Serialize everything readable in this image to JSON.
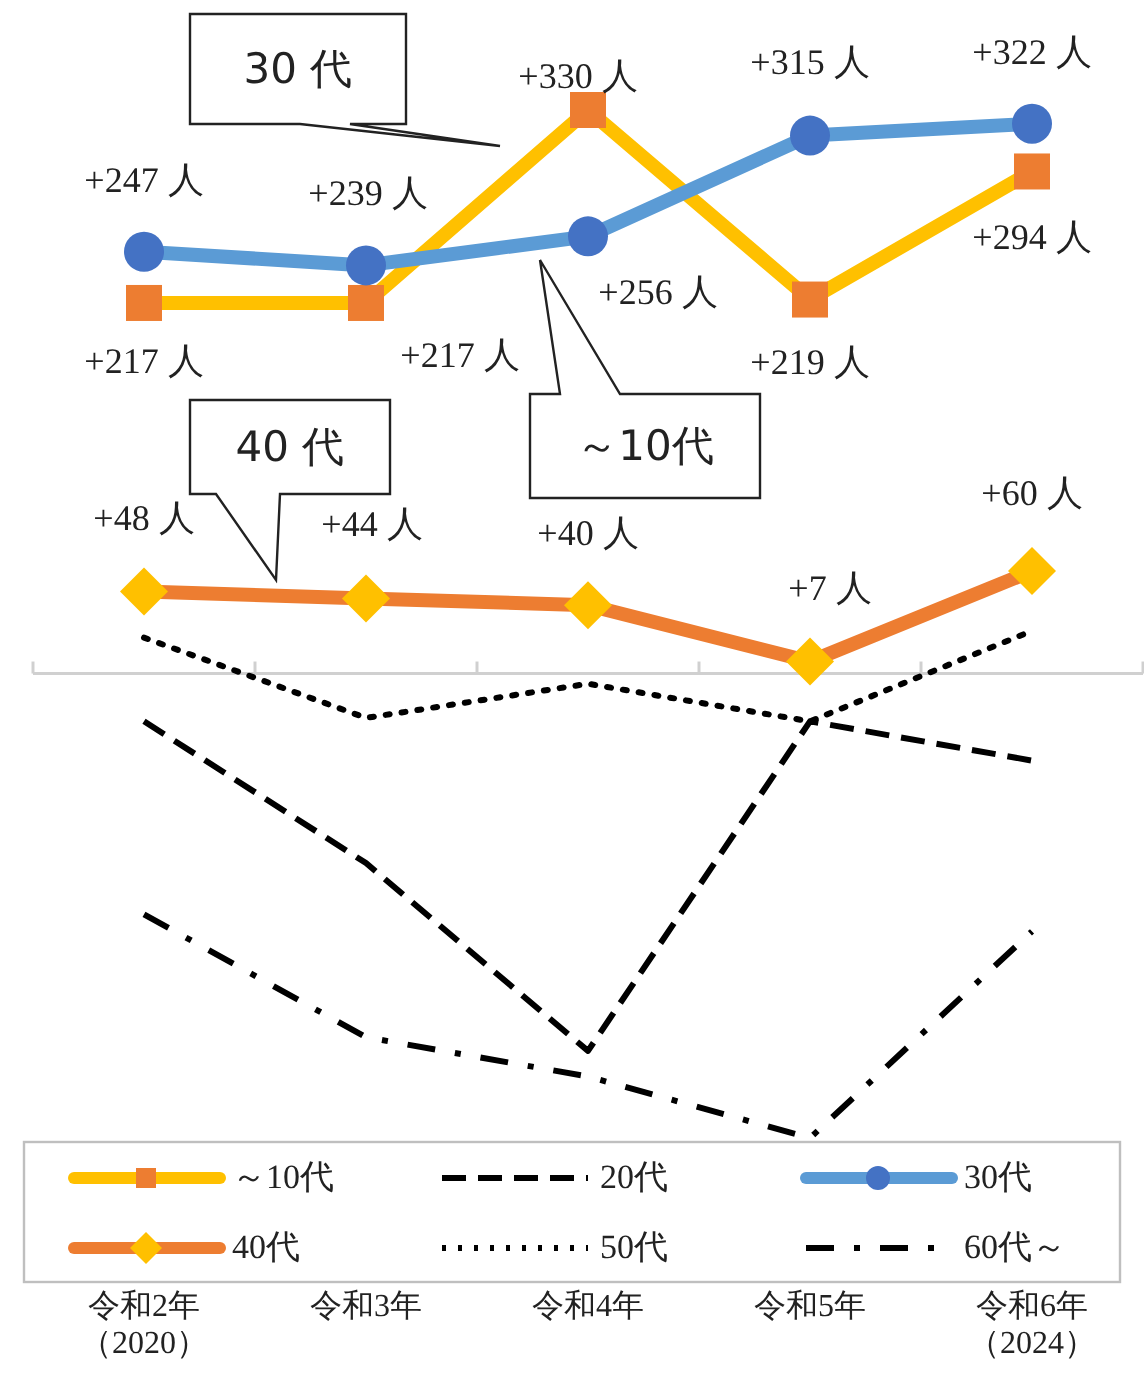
{
  "chart_data": {
    "type": "line",
    "categories": [
      "令和2年（2020）",
      "令和3年",
      "令和4年",
      "令和5年",
      "令和6年（2024）"
    ],
    "series": [
      {
        "name": "～10代",
        "color": "#ffc000",
        "colors": [
          "#ed7d31",
          "#ed7d31",
          "#ed7d31",
          "#ed7d31",
          "#ed7d31"
        ],
        "marker": "square",
        "line_style": "solid",
        "values": [
          217,
          217,
          330,
          219,
          294
        ],
        "value_labels": [
          "+217 人",
          "+217 人",
          "+330 人",
          "+219 人",
          "+294 人"
        ]
      },
      {
        "name": "20代",
        "color": "#000000",
        "marker": "none",
        "line_style": "dashed",
        "values": [
          -28,
          -111,
          -221,
          -28,
          -51
        ]
      },
      {
        "name": "30代",
        "color": "#5b9bd5",
        "colors": [
          "#4472c4",
          "#4472c4",
          "#4472c4",
          "#4472c4",
          "#4472c4"
        ],
        "marker": "circle",
        "line_style": "solid",
        "values": [
          247,
          239,
          256,
          315,
          322
        ],
        "value_labels": [
          "+247 人",
          "+239 人",
          "+256 人",
          "+315 人",
          "+322 人"
        ]
      },
      {
        "name": "40代",
        "color": "#ed7d31",
        "colors": [
          "#ffc000",
          "#ffc000",
          "#ffc000",
          "#ffc000",
          "#ffc000"
        ],
        "marker": "diamond",
        "line_style": "solid",
        "values": [
          48,
          44,
          40,
          7,
          60
        ],
        "value_labels": [
          "+48 人",
          "+44 人",
          "+40 人",
          "+7 人",
          "+60 人"
        ]
      },
      {
        "name": "50代",
        "color": "#000000",
        "marker": "none",
        "line_style": "dotted",
        "values": [
          21,
          -26,
          -6,
          -28,
          25
        ]
      },
      {
        "name": "60代～",
        "color": "#000000",
        "marker": "none",
        "line_style": "dashdot",
        "values": [
          -141,
          -213,
          -236,
          -272,
          -151
        ]
      }
    ],
    "annotations": [
      "30 代",
      "～10代",
      "40 代"
    ],
    "tick_labels": "x",
    "legend": "bottom"
  }
}
